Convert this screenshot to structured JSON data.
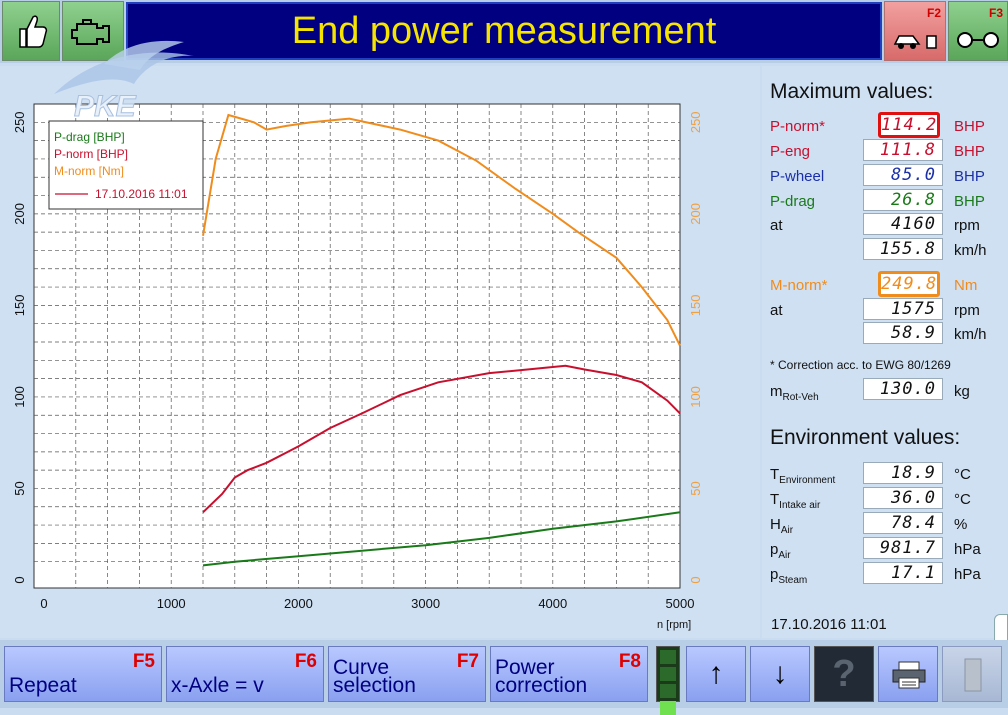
{
  "header": {
    "title": "End power measurement",
    "f2_key": "F2",
    "f3_key": "F3",
    "left_icons": [
      "thumbs-up-icon",
      "engine-icon"
    ]
  },
  "chart_data": {
    "type": "line",
    "xlabel": "n [rpm]",
    "xlim": [
      0,
      5000
    ],
    "x_ticks": [
      0,
      1000,
      2000,
      3000,
      4000,
      5000
    ],
    "y_left_ticks": [
      0,
      50,
      100,
      150,
      200,
      250
    ],
    "y_right_ticks": [
      0,
      50,
      100,
      150,
      200,
      250
    ],
    "ylim": [
      0,
      260
    ],
    "grid": true,
    "legend_position": "top-left",
    "legend_date": "17.10.2016 11:01",
    "series": [
      {
        "name": "P-drag [BHP]",
        "color": "#1a7a1a",
        "x": [
          1250,
          1500,
          2000,
          2500,
          3000,
          3500,
          4000,
          4500,
          5000
        ],
        "y": [
          8,
          10,
          13,
          16,
          19,
          23,
          28,
          32,
          37
        ]
      },
      {
        "name": "P-norm [BHP]",
        "color": "#c8102e",
        "x": [
          1250,
          1400,
          1500,
          1600,
          1750,
          2000,
          2250,
          2500,
          2800,
          3100,
          3500,
          3800,
          4100,
          4250,
          4500,
          4700,
          4900,
          5000
        ],
        "y": [
          37,
          47,
          56,
          60,
          64,
          73,
          83,
          91,
          101,
          108,
          113,
          115,
          117,
          115,
          112,
          108,
          98,
          91
        ]
      },
      {
        "name": "M-norm [Nm]",
        "color": "#f08c1c",
        "x": [
          1250,
          1350,
          1450,
          1550,
          1650,
          1750,
          1900,
          2100,
          2400,
          2600,
          2800,
          3100,
          3400,
          3700,
          4000,
          4200,
          4500,
          4700,
          4900,
          5000
        ],
        "y": [
          188,
          230,
          254,
          252,
          250,
          246,
          248,
          250,
          252,
          249,
          246,
          240,
          229,
          214,
          200,
          190,
          176,
          160,
          142,
          128
        ]
      }
    ]
  },
  "max_values": {
    "title": "Maximum values:",
    "rows": [
      {
        "label": "P-norm*",
        "value": "114.2",
        "unit": "BHP",
        "color": "#c8102e",
        "vcolor": "#c8102e"
      },
      {
        "label": "P-eng",
        "value": "111.8",
        "unit": "BHP",
        "color": "#c8102e",
        "vcolor": "#c8102e"
      },
      {
        "label": "P-wheel",
        "value": "85.0",
        "unit": "BHP",
        "color": "#1a2fa8",
        "vcolor": "#1a2fa8"
      },
      {
        "label": "P-drag",
        "value": "26.8",
        "unit": "BHP",
        "color": "#1a7a1a",
        "vcolor": "#1a7a1a"
      },
      {
        "label": "at",
        "value": "4160",
        "unit": "rpm",
        "color": "#111111",
        "vcolor": "#111111"
      },
      {
        "label": "",
        "value": "155.8",
        "unit": "km/h",
        "color": "#111111",
        "vcolor": "#111111"
      },
      {
        "label": "M-norm*",
        "value": "249.8",
        "unit": "Nm",
        "color": "#f08c1c",
        "vcolor": "#f08c1c"
      },
      {
        "label": "at",
        "value": "1575",
        "unit": "rpm",
        "color": "#111111",
        "vcolor": "#111111"
      },
      {
        "label": "",
        "value": "58.9",
        "unit": "km/h",
        "color": "#111111",
        "vcolor": "#111111"
      }
    ],
    "note": "* Correction acc. to EWG 80/1269",
    "mass_label_main": "m",
    "mass_label_sub": "Rot-Veh",
    "mass_value": "130.0",
    "mass_unit": "kg"
  },
  "environment": {
    "title": "Environment values:",
    "rows": [
      {
        "main": "T",
        "sub": "Environment",
        "value": "18.9",
        "unit": "°C"
      },
      {
        "main": "T",
        "sub": "Intake air",
        "value": "36.0",
        "unit": "°C"
      },
      {
        "main": "H",
        "sub": "Air",
        "value": "78.4",
        "unit": "%"
      },
      {
        "main": "p",
        "sub": "Air",
        "value": "981.7",
        "unit": "hPa"
      },
      {
        "main": "p",
        "sub": "Steam",
        "value": "17.1",
        "unit": "hPa"
      }
    ]
  },
  "datetime": "17.10.2016   11:01",
  "footer": {
    "buttons": [
      {
        "key": "F5",
        "line1": "",
        "line2": "Repeat"
      },
      {
        "key": "F6",
        "line1": "",
        "line2": "x-Axle = v"
      },
      {
        "key": "F7",
        "line1": "Curve",
        "line2": "selection"
      },
      {
        "key": "F8",
        "line1": "Power",
        "line2": "correction"
      }
    ],
    "arrow_up": "↑",
    "arrow_down": "↓",
    "help": "?"
  }
}
